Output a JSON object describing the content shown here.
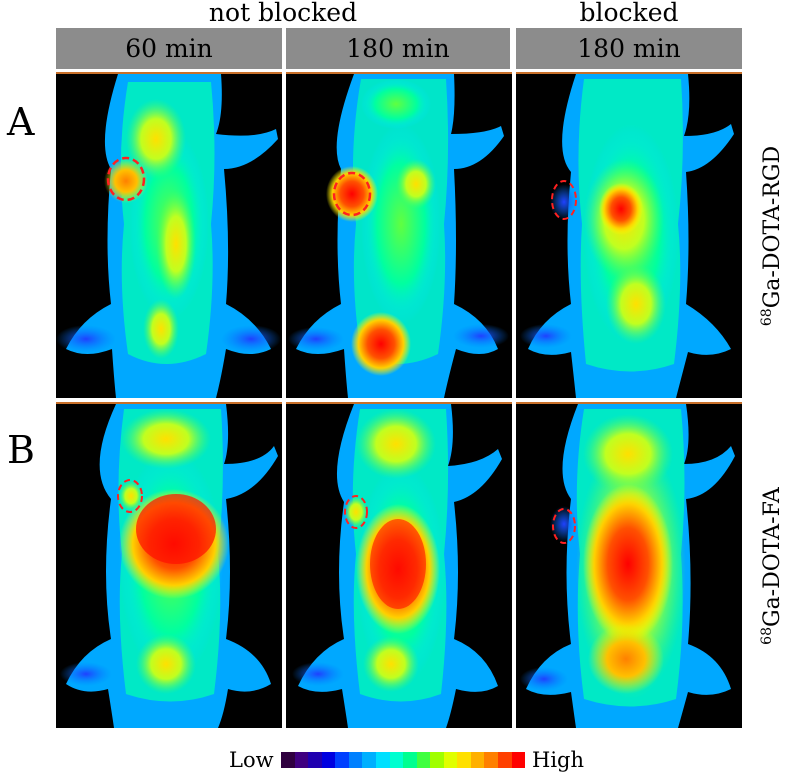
{
  "headers": {
    "group_not_blocked": "not blocked",
    "group_blocked": "blocked",
    "columns": [
      "60 min",
      "180 min",
      "180 min"
    ]
  },
  "rows": {
    "a": {
      "letter": "A",
      "tracer": "Ga-DOTA-RGD",
      "isotope": "68"
    },
    "b": {
      "letter": "B",
      "tracer": "Ga-DOTA-FA",
      "isotope": "68"
    }
  },
  "legend": {
    "low": "Low",
    "high": "High",
    "colors": [
      "#300040",
      "#400080",
      "#2000b0",
      "#0000e0",
      "#0040ff",
      "#0080ff",
      "#00b0ff",
      "#00e0ff",
      "#00ffd0",
      "#00ff90",
      "#40ff40",
      "#a0ff00",
      "#e0ff00",
      "#ffe000",
      "#ffb000",
      "#ff8000",
      "#ff4000",
      "#ff0000"
    ]
  },
  "colors": {
    "header_bar": "#8c8c8c",
    "roi_outline": "#ff2020",
    "panel_background": "#000000"
  }
}
